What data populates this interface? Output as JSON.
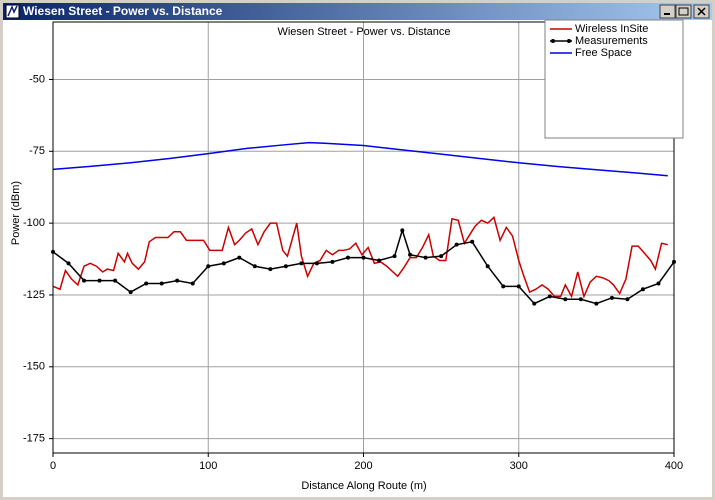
{
  "window": {
    "title": "Wiesen Street - Power vs. Distance"
  },
  "chart_data": {
    "type": "line",
    "title": "Wiesen Street - Power vs. Distance",
    "xlabel": "Distance Along Route (m)",
    "ylabel": "Power (dBm)",
    "xlim": [
      0,
      400
    ],
    "ylim": [
      -180,
      -30
    ],
    "xticks": [
      0,
      100,
      200,
      300,
      400
    ],
    "yticks": [
      -175,
      -150,
      -125,
      -100,
      -75,
      -50
    ],
    "grid": true,
    "series": [
      {
        "name": "Wireless InSite",
        "color": "#cc0000",
        "x": [
          0,
          4.5,
          8,
          12,
          16,
          20,
          24,
          28,
          32,
          35,
          39,
          42,
          46,
          48,
          51,
          55,
          59,
          62,
          66,
          70,
          74,
          78,
          82,
          86,
          90,
          93,
          97,
          101,
          105,
          109,
          113,
          117,
          120,
          124,
          128,
          132,
          136,
          140,
          144,
          148,
          151,
          157,
          160,
          164,
          168,
          172,
          176,
          180,
          184,
          187,
          191,
          195,
          199,
          203,
          207,
          211,
          215,
          218,
          222,
          226,
          230,
          234,
          238,
          242,
          245,
          249,
          253,
          257,
          261,
          265,
          269,
          272,
          276,
          280,
          284,
          288,
          292,
          296,
          300,
          303,
          307,
          311,
          315,
          319,
          323,
          327,
          330,
          334,
          338,
          342,
          346,
          350,
          354,
          358,
          361,
          365,
          369,
          373,
          377,
          381,
          385,
          388,
          392,
          396
        ],
        "values": [
          -122,
          -123,
          -116.5,
          -119.5,
          -121.5,
          -115,
          -114,
          -115,
          -117,
          -116,
          -116.5,
          -110.5,
          -113.5,
          -110.5,
          -114,
          -116,
          -113.5,
          -106.5,
          -105,
          -105,
          -105,
          -103,
          -103,
          -106,
          -106,
          -106,
          -106,
          -109.5,
          -109.5,
          -109.5,
          -101.5,
          -107.5,
          -106,
          -103.5,
          -102,
          -107.5,
          -103,
          -100,
          -100,
          -109.5,
          -111.5,
          -100,
          -111.5,
          -118.5,
          -114,
          -113,
          -109.5,
          -111,
          -109.5,
          -109.5,
          -109,
          -107,
          -111,
          -108.5,
          -114,
          -113.5,
          -115,
          -116.5,
          -118.5,
          -115.5,
          -112,
          -112,
          -108.5,
          -104,
          -111.5,
          -113,
          -113,
          -98.5,
          -99,
          -107,
          -103.5,
          -101,
          -99,
          -100,
          -98,
          -106,
          -101.5,
          -104.5,
          -113,
          -118,
          -124,
          -123,
          -121.5,
          -123,
          -125.5,
          -125.5,
          -121.5,
          -125.5,
          -117,
          -125.5,
          -120.5,
          -118.5,
          -119,
          -120,
          -121.5,
          -124.5,
          -119.5,
          -108,
          -108,
          -110.5,
          -113,
          -116,
          -107,
          -107.5
        ]
      },
      {
        "name": "Measurements",
        "color": "#000000",
        "marker": "circle",
        "x": [
          0,
          10,
          20,
          30,
          40,
          50,
          60,
          70,
          80,
          90,
          100,
          110,
          120,
          130,
          140,
          150,
          160,
          170,
          180,
          190,
          200,
          210,
          220,
          225,
          230,
          240,
          250,
          260,
          270,
          280,
          290,
          300,
          310,
          320,
          330,
          340,
          350,
          360,
          370,
          380,
          390,
          400
        ],
        "values": [
          -110,
          -114,
          -120,
          -120,
          -120,
          -124,
          -121,
          -121,
          -120,
          -121,
          -115,
          -114,
          -112,
          -115,
          -116,
          -115,
          -114,
          -114,
          -113.5,
          -112,
          -112,
          -113,
          -111.5,
          -102.5,
          -111,
          -112,
          -111.5,
          -107.5,
          -106.5,
          -115,
          -122,
          -122,
          -128,
          -125.5,
          -126.5,
          -126.5,
          -128,
          -126,
          -126.5,
          -123,
          -121,
          -113.5
        ]
      },
      {
        "name": "Free Space",
        "color": "#0000ee",
        "x": [
          0,
          25,
          50,
          75,
          100,
          125,
          150,
          165,
          175,
          200,
          225,
          250,
          275,
          300,
          325,
          350,
          375,
          396
        ],
        "values": [
          -81.3,
          -80.2,
          -79,
          -77.5,
          -75.8,
          -74,
          -72.7,
          -72,
          -72.2,
          -73,
          -74.5,
          -76,
          -77.5,
          -79,
          -80.3,
          -81.4,
          -82.5,
          -83.5
        ]
      }
    ]
  }
}
